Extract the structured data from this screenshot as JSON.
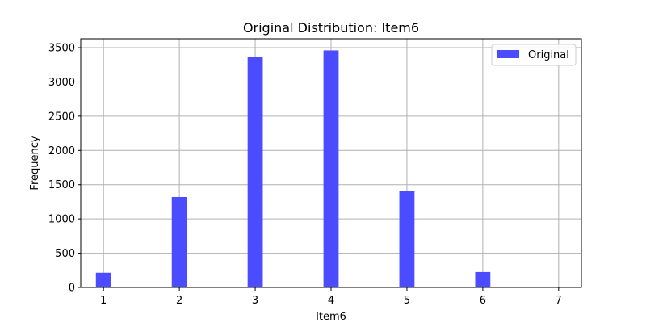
{
  "chart_data": {
    "type": "bar",
    "title": "Original Distribution: Item6",
    "xlabel": "Item6",
    "ylabel": "Frequency",
    "x": [
      1,
      2,
      3,
      4,
      5,
      6,
      7
    ],
    "series": [
      {
        "name": "Original",
        "values": [
          215,
          1320,
          3370,
          3460,
          1405,
          225,
          10
        ]
      }
    ],
    "xlim": [
      0.7,
      7.3
    ],
    "ylim": [
      0,
      3630
    ],
    "xticks": [
      "1",
      "2",
      "3",
      "4",
      "5",
      "6",
      "7"
    ],
    "yticks": [
      "0",
      "500",
      "1000",
      "1500",
      "2000",
      "2500",
      "3000",
      "3500"
    ],
    "bin_width": 0.2,
    "grid": true,
    "legend_position": "top-right",
    "colors": {
      "bar": "#4b4bff",
      "grid": "#b0b0b0",
      "axis": "#000000"
    }
  }
}
